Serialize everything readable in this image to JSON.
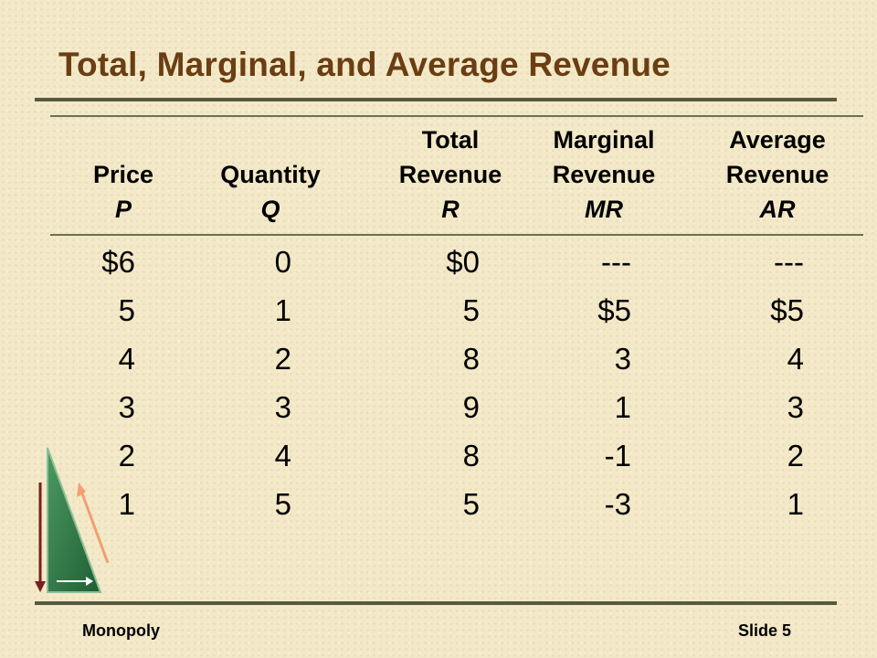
{
  "slide": {
    "title": "Total, Marginal, and Average Revenue",
    "footer_left": "Monopoly",
    "footer_right": "Slide 5"
  },
  "table": {
    "columns": [
      {
        "line1": "",
        "line2": "Price",
        "symbol": "P"
      },
      {
        "line1": "",
        "line2": "Quantity",
        "symbol": "Q"
      },
      {
        "line1": "Total",
        "line2": "Revenue",
        "symbol": "R"
      },
      {
        "line1": "Marginal",
        "line2": "Revenue",
        "symbol": "MR"
      },
      {
        "line1": "Average",
        "line2": "Revenue",
        "symbol": "AR"
      }
    ],
    "values": {
      "price": [
        "$6",
        "5",
        "4",
        "3",
        "2",
        "1"
      ],
      "quantity": [
        "0",
        "1",
        "2",
        "3",
        "4",
        "5"
      ],
      "total_revenue": [
        "$0",
        "5",
        "8",
        "9",
        "8",
        "5"
      ],
      "marginal_revenue": [
        "---",
        "$5",
        "3",
        "1",
        "-1",
        "-3"
      ],
      "average_revenue": [
        "---",
        "$5",
        "4",
        "3",
        "2",
        "1"
      ]
    }
  },
  "colors": {
    "title": "#6b3d12",
    "rule": "#555a42",
    "background": "#f3e9c8",
    "triangle": "#2f7a45",
    "arrow_dark": "#7a1f1f",
    "arrow_light": "#f0a070"
  },
  "decoration": {
    "icon": "green-triangle-arrows-icon"
  }
}
